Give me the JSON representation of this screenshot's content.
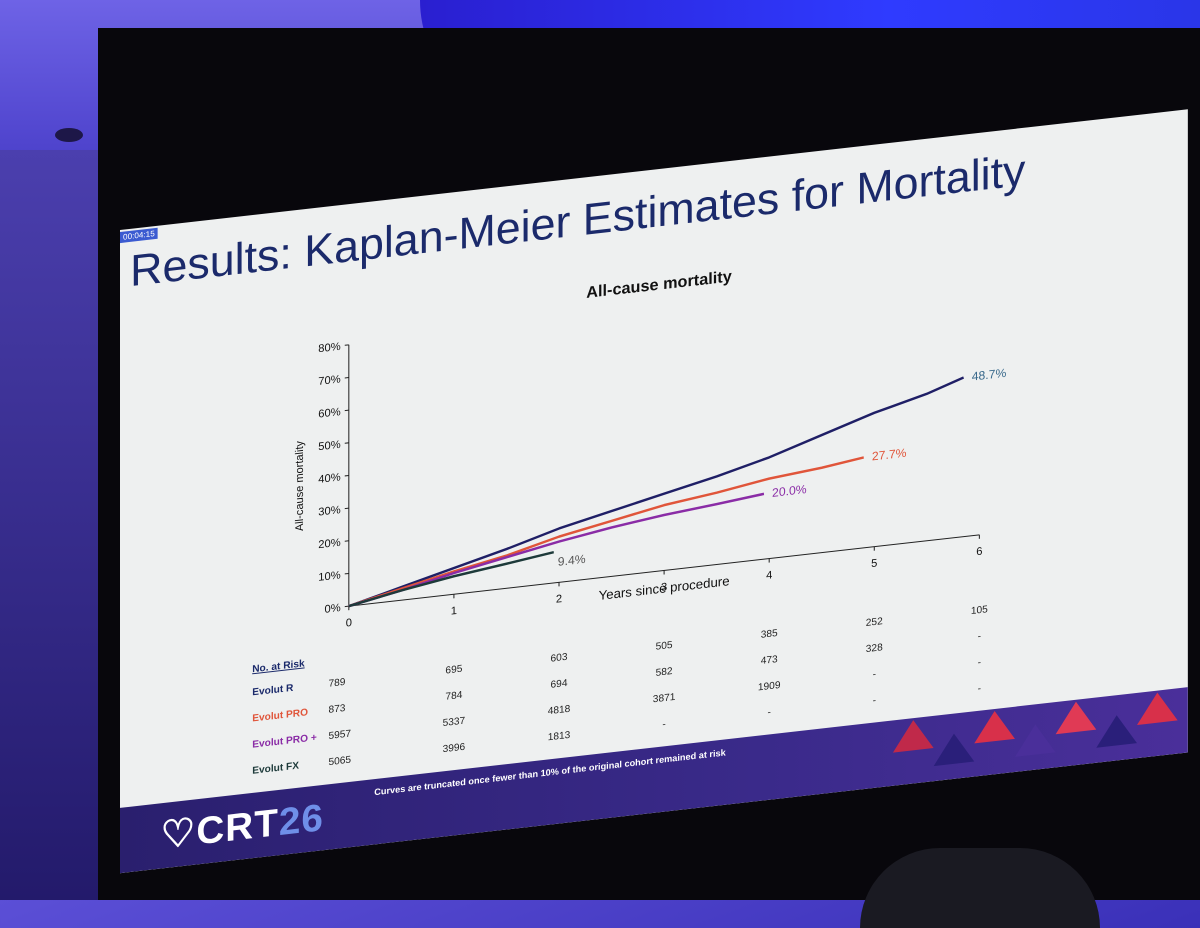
{
  "slide": {
    "title": "Results: Kaplan-Meier Estimates for Mortality",
    "timer": "00:04:15",
    "footnote": "Curves are truncated once fewer than 10% of the original cohort remained at risk",
    "logo_text": "CRT",
    "logo_number": "26"
  },
  "colors": {
    "evolut_r": "#1f1f66",
    "evolut_pro": "#e0553a",
    "evolut_pro_plus": "#8a2ca6",
    "evolut_fx": "#1d3a3a",
    "title": "#1b2a6b",
    "label_blue": "#3a6a8c"
  },
  "chart_data": {
    "type": "line",
    "title": "All-cause mortality",
    "xlabel": "Years since procedure",
    "ylabel": "All-cause mortality",
    "x_ticks": [
      "0",
      "1",
      "2",
      "3",
      "4",
      "5",
      "6"
    ],
    "y_ticks": [
      "0%",
      "10%",
      "20%",
      "30%",
      "40%",
      "50%",
      "60%",
      "70%",
      "80%"
    ],
    "xlim": [
      0,
      6
    ],
    "ylim": [
      0,
      80
    ],
    "series": [
      {
        "name": "Evolut R",
        "points": [
          [
            0,
            0
          ],
          [
            0.5,
            4
          ],
          [
            1,
            8
          ],
          [
            1.5,
            12
          ],
          [
            2,
            16.5
          ],
          [
            2.5,
            20
          ],
          [
            3,
            23.5
          ],
          [
            3.5,
            27
          ],
          [
            4,
            31
          ],
          [
            4.5,
            36
          ],
          [
            5,
            41
          ],
          [
            5.5,
            45
          ],
          [
            5.85,
            48.7
          ]
        ],
        "end_label": "48.7%"
      },
      {
        "name": "Evolut PRO",
        "points": [
          [
            0,
            0
          ],
          [
            0.5,
            3.5
          ],
          [
            1,
            7
          ],
          [
            1.5,
            10
          ],
          [
            2,
            14
          ],
          [
            2.5,
            17
          ],
          [
            3,
            20
          ],
          [
            3.5,
            22
          ],
          [
            4,
            24.5
          ],
          [
            4.5,
            26
          ],
          [
            4.9,
            27.7
          ]
        ],
        "end_label": "27.7%"
      },
      {
        "name": "Evolut PRO +",
        "points": [
          [
            0,
            0
          ],
          [
            0.5,
            3
          ],
          [
            1,
            6.5
          ],
          [
            1.5,
            9.5
          ],
          [
            2,
            12.5
          ],
          [
            2.5,
            15
          ],
          [
            3,
            17
          ],
          [
            3.5,
            18.5
          ],
          [
            3.95,
            20
          ]
        ],
        "end_label": "20.0%"
      },
      {
        "name": "Evolut FX",
        "points": [
          [
            0,
            0
          ],
          [
            0.5,
            3
          ],
          [
            1,
            5.5
          ],
          [
            1.5,
            7.5
          ],
          [
            1.95,
            9.4
          ]
        ],
        "end_label": "9.4%"
      }
    ]
  },
  "risk_table": {
    "header": "No. at Risk",
    "rows": [
      {
        "label": "Evolut R",
        "values": [
          "789",
          "695",
          "603",
          "505",
          "385",
          "252",
          "105"
        ]
      },
      {
        "label": "Evolut PRO",
        "values": [
          "873",
          "784",
          "694",
          "582",
          "473",
          "328",
          "-"
        ]
      },
      {
        "label": "Evolut PRO +",
        "values": [
          "5957",
          "5337",
          "4818",
          "3871",
          "1909",
          "-",
          "-"
        ]
      },
      {
        "label": "Evolut FX",
        "values": [
          "5065",
          "3996",
          "1813",
          "-",
          "-",
          "-",
          "-"
        ]
      }
    ]
  }
}
